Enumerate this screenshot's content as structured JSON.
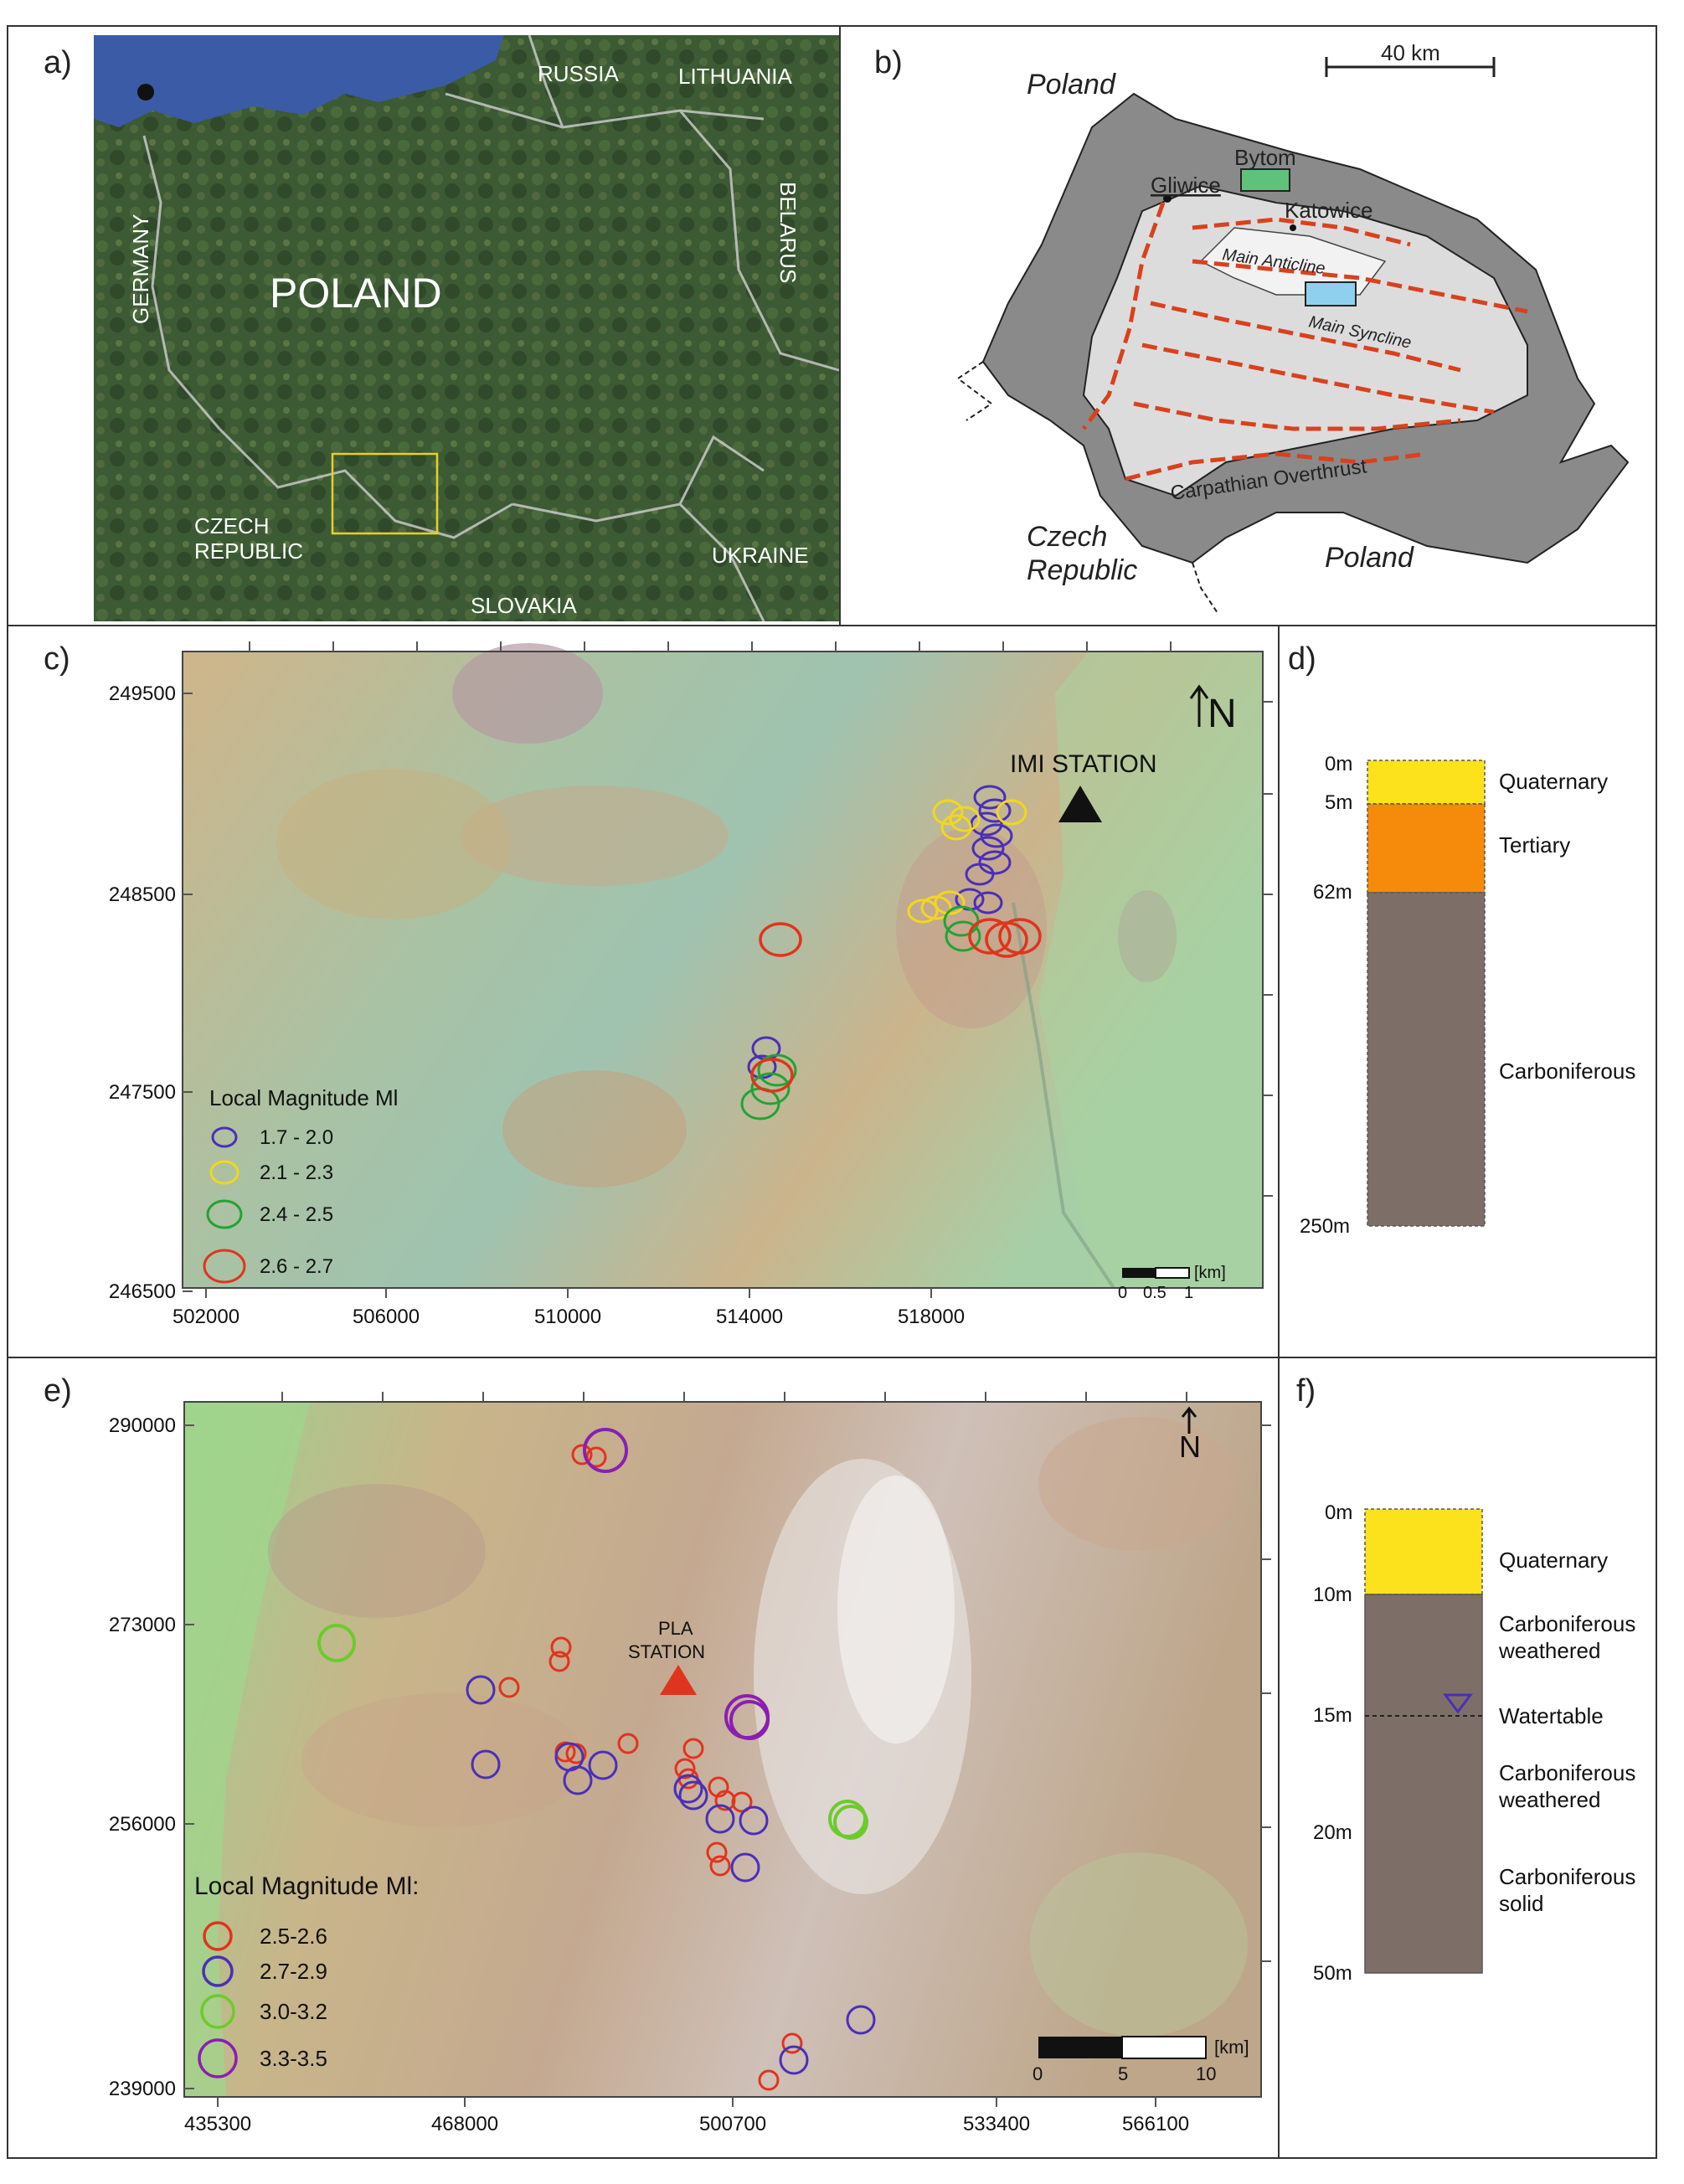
{
  "panel_labels": {
    "a": "a)",
    "b": "b)",
    "c": "c)",
    "d": "d)",
    "e": "e)",
    "f": "f)"
  },
  "panel_a": {
    "country": "POLAND",
    "neighbours": [
      "RUSSIA",
      "LITHUANIA",
      "BELARUS",
      "GERMANY",
      "CZECH",
      "REPUBLIC",
      "UKRAINE",
      "SLOVAKIA"
    ]
  },
  "panel_b": {
    "scale_label": "40 km",
    "poland_top": "Poland",
    "poland_bottom": "Poland",
    "czech_1": "Czech",
    "czech_2": "Republic",
    "cities": [
      "Gliwice",
      "Bytom",
      "Katowice"
    ],
    "structures": [
      "Main Anticline",
      "Main Syncline",
      "Carpathian Overthrust"
    ],
    "colors": {
      "boundary_fill": "#8a8a8a",
      "basin_fill": "#dcdcdc",
      "fault": "#d9411e",
      "box1": "#5fc27a",
      "box2": "#8fd0ef"
    }
  },
  "panel_c": {
    "y_ticks": [
      "249500",
      "248500",
      "247500",
      "246500"
    ],
    "x_ticks": [
      "502000",
      "506000",
      "510000",
      "514000",
      "518000"
    ],
    "station": "IMI STATION",
    "north": "N",
    "legend_title": "Local Magnitude Ml",
    "legend": [
      {
        "label": "1.7 - 2.0",
        "color": "#4a2fb8"
      },
      {
        "label": "2.1 - 2.3",
        "color": "#f2d71e"
      },
      {
        "label": "2.4 - 2.5",
        "color": "#22a334"
      },
      {
        "label": "2.6 - 2.7",
        "color": "#e0341e"
      }
    ],
    "scalebar": {
      "labels": [
        "0",
        "0.5",
        "1"
      ],
      "unit": "[km]"
    }
  },
  "panel_d": {
    "depths": [
      "0m",
      "5m",
      "62m",
      "250m"
    ],
    "layers": [
      {
        "name": "Quaternary",
        "color": "#fbe21c"
      },
      {
        "name": "Tertiary",
        "color": "#f58a0b"
      },
      {
        "name": "Carboniferous",
        "color": "#7d6f68"
      }
    ]
  },
  "panel_e": {
    "y_ticks": [
      "290000",
      "273000",
      "256000",
      "239000"
    ],
    "x_ticks": [
      "435300",
      "468000",
      "500700",
      "533400",
      "566100"
    ],
    "station_1": "PLA",
    "station_2": "STATION",
    "north": "N",
    "legend_title": "Local Magnitude Ml:",
    "legend": [
      {
        "label": "2.5-2.6",
        "color": "#e0341e"
      },
      {
        "label": "2.7-2.9",
        "color": "#4a2fb8"
      },
      {
        "label": "3.0-3.2",
        "color": "#6ccb2c"
      },
      {
        "label": "3.3-3.5",
        "color": "#8a1fb0"
      }
    ],
    "scalebar": {
      "labels": [
        "0",
        "5",
        "10"
      ],
      "unit": "[km]"
    }
  },
  "panel_f": {
    "depths": [
      "0m",
      "10m",
      "15m",
      "20m",
      "50m"
    ],
    "layers": [
      {
        "name": "Quaternary",
        "color": "#fbe21c"
      },
      {
        "name1": "Carboniferous",
        "name2": "weathered"
      },
      {
        "name": "Watertable"
      },
      {
        "name1": "Carboniferous",
        "name2": "weathered"
      },
      {
        "name1": "Carboniferous",
        "name2": "solid"
      }
    ],
    "rock_color": "#7d6f68"
  }
}
